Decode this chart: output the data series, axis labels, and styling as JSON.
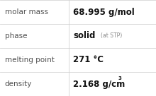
{
  "rows": [
    {
      "label": "molar mass",
      "value_bold": "68.995 g/mol",
      "small_suffix": null,
      "superscript": null
    },
    {
      "label": "phase",
      "value_bold": "solid",
      "small_suffix": "(at STP)",
      "superscript": null
    },
    {
      "label": "melting point",
      "value_bold": "271 °C",
      "small_suffix": null,
      "superscript": null
    },
    {
      "label": "density",
      "value_bold": "2.168 g/cm",
      "small_suffix": null,
      "superscript": "3"
    }
  ],
  "bg_color": "#ffffff",
  "line_color": "#cccccc",
  "label_color": "#505050",
  "value_color": "#111111",
  "small_color": "#888888",
  "label_fontsize": 7.5,
  "value_fontsize": 8.5,
  "small_fontsize": 5.5,
  "super_fontsize": 5.0,
  "col_split": 0.44,
  "fig_width": 2.2,
  "fig_height": 1.36,
  "dpi": 100
}
